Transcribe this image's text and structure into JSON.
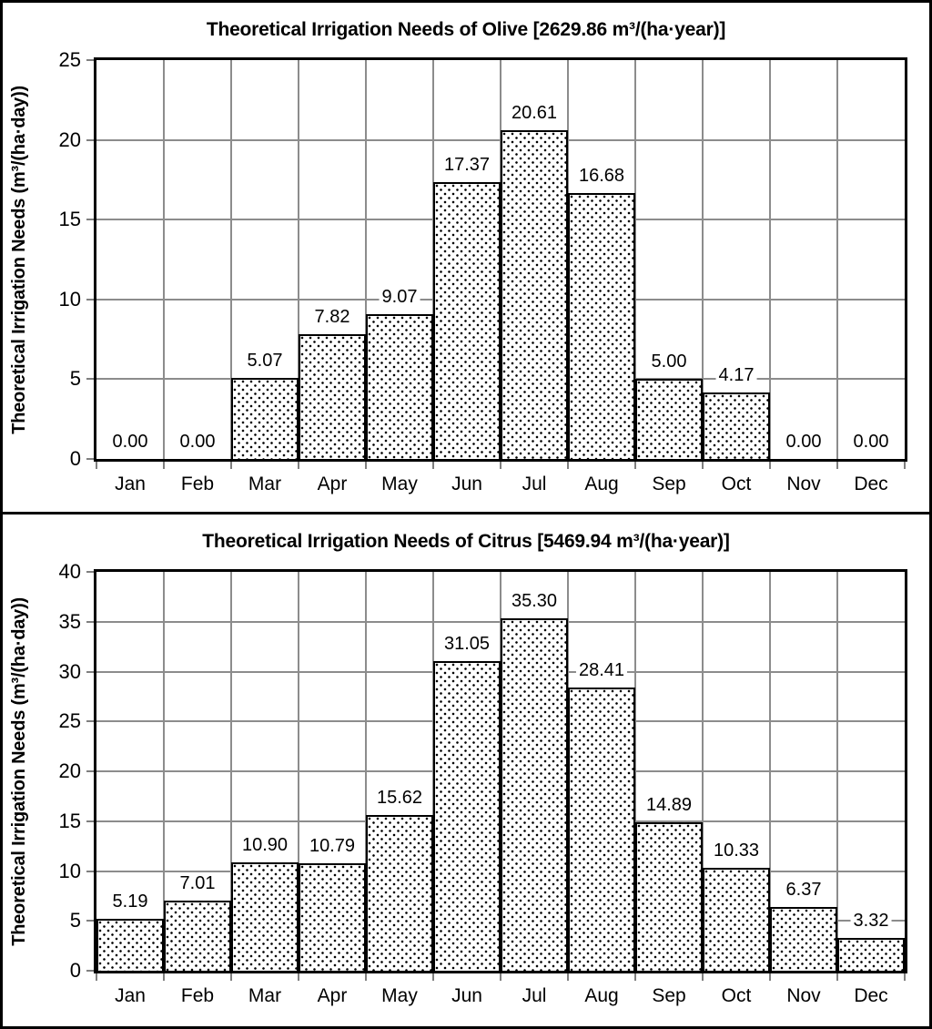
{
  "colors": {
    "background": "#ffffff",
    "frame_border": "#000000",
    "plot_border": "#000000",
    "gridline": "#8c8c8c",
    "axis_tick": "#7f7f7f",
    "bar_fill": "#ffffff",
    "bar_dot_pattern": "#000000",
    "bar_border": "#000000",
    "text": "#000000"
  },
  "chart_data": [
    {
      "type": "bar",
      "title": "Theoretical Irrigation Needs of Olive [2629.86 m³/(ha·year)]",
      "annual_total_label": "2629.86 m³/(ha·year)",
      "ylabel": "Theoretical Irrigation Needs (m³/(ha·day))",
      "xlabel": "",
      "categories": [
        "Jan",
        "Feb",
        "Mar",
        "Apr",
        "May",
        "Jun",
        "Jul",
        "Aug",
        "Sep",
        "Oct",
        "Nov",
        "Dec"
      ],
      "values": [
        0.0,
        0.0,
        5.07,
        7.82,
        9.07,
        17.37,
        20.61,
        16.68,
        5.0,
        4.17,
        0.0,
        0.0
      ],
      "value_labels": [
        "0.00",
        "0.00",
        "5.07",
        "7.82",
        "9.07",
        "17.37",
        "20.61",
        "16.68",
        "5.00",
        "4.17",
        "0.00",
        "0.00"
      ],
      "ylim": [
        0,
        25
      ],
      "ytick_step": 5,
      "ytick_labels": [
        "0",
        "5",
        "10",
        "15",
        "20",
        "25"
      ],
      "grid": true,
      "legend_position": "none",
      "bar_pattern": "dotted",
      "gap_width_percent": 0
    },
    {
      "type": "bar",
      "title": "Theoretical Irrigation Needs of Citrus [5469.94 m³/(ha·year)]",
      "annual_total_label": "5469.94 m³/(ha·year)",
      "ylabel": "Theoretical Irrigation Needs (m³/(ha·day))",
      "xlabel": "",
      "categories": [
        "Jan",
        "Feb",
        "Mar",
        "Apr",
        "May",
        "Jun",
        "Jul",
        "Aug",
        "Sep",
        "Oct",
        "Nov",
        "Dec"
      ],
      "values": [
        5.19,
        7.01,
        10.9,
        10.79,
        15.62,
        31.05,
        35.3,
        28.41,
        14.89,
        10.33,
        6.37,
        3.32
      ],
      "value_labels": [
        "5.19",
        "7.01",
        "10.90",
        "10.79",
        "15.62",
        "31.05",
        "35.30",
        "28.41",
        "14.89",
        "10.33",
        "6.37",
        "3.32"
      ],
      "ylim": [
        0,
        40
      ],
      "ytick_step": 5,
      "ytick_labels": [
        "0",
        "5",
        "10",
        "15",
        "20",
        "25",
        "30",
        "35",
        "40"
      ],
      "grid": true,
      "legend_position": "none",
      "bar_pattern": "dotted",
      "gap_width_percent": 0
    }
  ]
}
